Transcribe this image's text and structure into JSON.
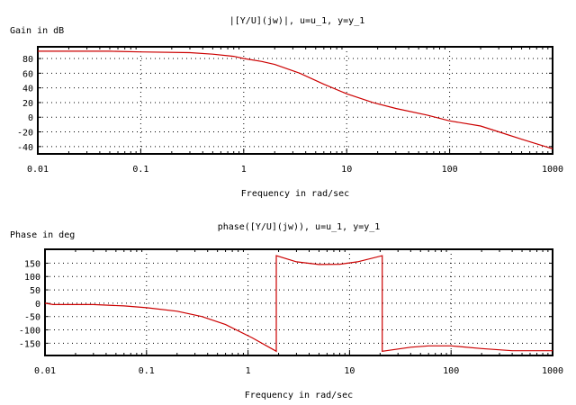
{
  "chart_data": [
    {
      "type": "line",
      "title": "|[Y/U](jw)|, u=u_1, y=y_1",
      "xlabel": "Frequency in rad/sec",
      "ylabel": "Gain in dB",
      "xscale": "log",
      "xlim": [
        0.01,
        1000
      ],
      "ylim": [
        -50,
        96
      ],
      "xticks": [
        "0.01",
        "0.1",
        "1",
        "10",
        "100",
        "1000"
      ],
      "xtick_values": [
        0.01,
        0.1,
        1,
        10,
        100,
        1000
      ],
      "yticks": [
        80,
        60,
        40,
        20,
        0,
        -20,
        -40
      ],
      "grid": true,
      "line_color": "#cc0000",
      "series": [
        {
          "x": [
            0.01,
            0.05,
            0.1,
            0.3,
            0.5,
            0.8,
            1,
            1.5,
            2,
            3.5,
            6,
            10,
            18,
            30,
            60,
            100,
            200,
            300,
            500,
            1000
          ],
          "y": [
            90,
            90,
            89,
            88,
            86,
            83,
            80,
            76,
            72,
            60,
            45,
            32,
            20,
            12,
            3,
            -5,
            -12,
            -20,
            -30,
            -43
          ]
        }
      ]
    },
    {
      "type": "line",
      "title": "phase([Y/U](jw)), u=u_1, y=y_1",
      "xlabel": "Frequency in rad/sec",
      "ylabel": "Phase in deg",
      "xscale": "log",
      "xlim": [
        0.01,
        1000
      ],
      "ylim": [
        -196,
        202
      ],
      "xticks": [
        "0.01",
        "0.1",
        "1",
        "10",
        "100",
        "1000"
      ],
      "xtick_values": [
        0.01,
        0.1,
        1,
        10,
        100,
        1000
      ],
      "yticks": [
        150,
        100,
        50,
        0,
        -50,
        -100,
        -150
      ],
      "grid": true,
      "line_color": "#cc0000",
      "series": [
        {
          "x": [
            0.01,
            0.012,
            0.03,
            0.06,
            0.1,
            0.2,
            0.35,
            0.6,
            1.1,
            1.9,
            1.9,
            3,
            5,
            8,
            12,
            21,
            21,
            40,
            60,
            100,
            200,
            400,
            1000
          ],
          "y": [
            0,
            -5,
            -5,
            -10,
            -17,
            -30,
            -50,
            -80,
            -130,
            -180,
            178,
            155,
            145,
            146,
            155,
            178,
            -180,
            -165,
            -160,
            -160,
            -170,
            -178,
            -178
          ]
        }
      ]
    }
  ]
}
